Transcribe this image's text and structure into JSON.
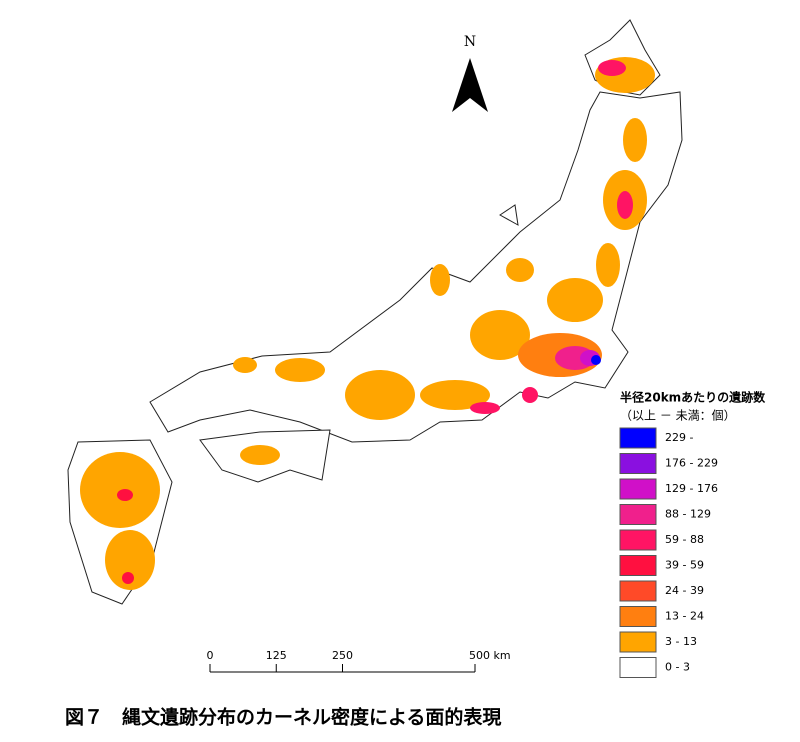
{
  "map": {
    "north": "N",
    "legend": {
      "title": "半径20kmあたりの遺跡数",
      "subtitle": "（以上 － 未満：個）",
      "items": [
        {
          "label": "229 -",
          "color": "#0000ff"
        },
        {
          "label": "176 - 229",
          "color": "#8a10e0"
        },
        {
          "label": "129 - 176",
          "color": "#d010c8"
        },
        {
          "label": "88 - 129",
          "color": "#f0208c"
        },
        {
          "label": "59 - 88",
          "color": "#ff1464"
        },
        {
          "label": "39 - 59",
          "color": "#ff1040"
        },
        {
          "label": "24 - 39",
          "color": "#ff4a28"
        },
        {
          "label": "13 - 24",
          "color": "#ff7f10"
        },
        {
          "label": "3 - 13",
          "color": "#ffa500"
        },
        {
          "label": "0 - 3",
          "color": "#ffffff"
        }
      ]
    },
    "scale_bar": {
      "ticks": [
        0,
        125,
        250,
        {
          "value": 500,
          "label": "500 km"
        }
      ]
    },
    "caption": "図７　縄文遺跡分布のカーネル密度による面的表現"
  }
}
